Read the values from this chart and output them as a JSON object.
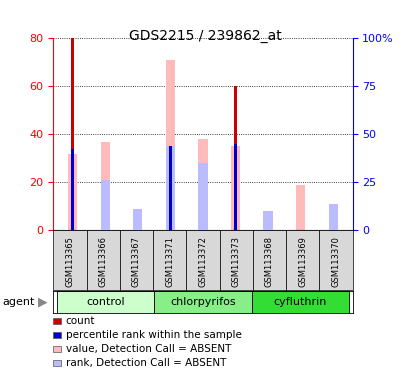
{
  "title": "GDS2215 / 239862_at",
  "samples": [
    "GSM113365",
    "GSM113366",
    "GSM113367",
    "GSM113371",
    "GSM113372",
    "GSM113373",
    "GSM113368",
    "GSM113369",
    "GSM113370"
  ],
  "groups": [
    {
      "name": "control",
      "indices": [
        0,
        1,
        2
      ],
      "color": "#ccffcc"
    },
    {
      "name": "chlorpyrifos",
      "indices": [
        3,
        4,
        5
      ],
      "color": "#88ee88"
    },
    {
      "name": "cyfluthrin",
      "indices": [
        6,
        7,
        8
      ],
      "color": "#33dd33"
    }
  ],
  "count_values": [
    80,
    0,
    0,
    0,
    0,
    60,
    0,
    0,
    0
  ],
  "percentile_values": [
    34,
    0,
    0,
    35,
    0,
    36,
    0,
    0,
    0
  ],
  "absent_value_values": [
    32,
    37,
    9,
    71,
    38,
    35,
    6,
    19,
    11
  ],
  "absent_rank_values": [
    0,
    21,
    9,
    35,
    28,
    0,
    8,
    0,
    11
  ],
  "ylim_left": [
    0,
    80
  ],
  "ylim_right": [
    0,
    100
  ],
  "yticks_left": [
    0,
    20,
    40,
    60,
    80
  ],
  "yticks_right": [
    0,
    25,
    50,
    75,
    100
  ],
  "ytick_labels_right": [
    "0",
    "25",
    "50",
    "75",
    "100%"
  ],
  "color_count": "#cc0000",
  "color_percentile": "#0000cc",
  "color_absent_value": "#ffbbbb",
  "color_absent_rank": "#bbbbff",
  "agent_label": "agent",
  "legend_items": [
    {
      "color": "#cc0000",
      "label": "count"
    },
    {
      "color": "#0000cc",
      "label": "percentile rank within the sample"
    },
    {
      "color": "#ffbbbb",
      "label": "value, Detection Call = ABSENT"
    },
    {
      "color": "#bbbbff",
      "label": "rank, Detection Call = ABSENT"
    }
  ]
}
